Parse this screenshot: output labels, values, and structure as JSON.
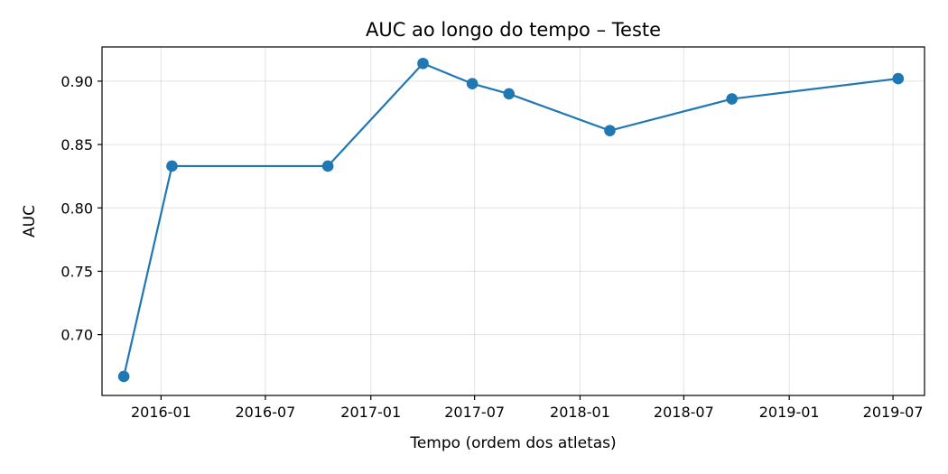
{
  "chart_data": {
    "type": "line",
    "title": "AUC ao longo do tempo – Teste",
    "xlabel": "Tempo (ordem dos atletas)",
    "ylabel": "AUC",
    "x_axis_type": "date",
    "xlim": [
      "2015-09-20",
      "2019-08-25"
    ],
    "ylim": [
      0.652,
      0.927
    ],
    "x_ticks": [
      "2016-01-01",
      "2016-07-01",
      "2017-01-01",
      "2017-07-01",
      "2018-01-01",
      "2018-07-01",
      "2019-01-01",
      "2019-07-01"
    ],
    "x_tick_labels": [
      "2016-01",
      "2016-07",
      "2017-01",
      "2017-07",
      "2018-01",
      "2018-07",
      "2019-01",
      "2019-07"
    ],
    "y_ticks": [
      0.7,
      0.75,
      0.8,
      0.85,
      0.9
    ],
    "y_tick_labels": [
      "0.70",
      "0.75",
      "0.80",
      "0.85",
      "0.90"
    ],
    "grid": true,
    "color": "#1f77b4",
    "series": [
      {
        "x": [
          "2015-10-28",
          "2016-01-20",
          "2016-10-18",
          "2017-04-02",
          "2017-06-27",
          "2017-08-30",
          "2018-02-22",
          "2018-09-23",
          "2019-07-10"
        ],
        "y": [
          0.667,
          0.833,
          0.833,
          0.914,
          0.898,
          0.89,
          0.861,
          0.886,
          0.902
        ]
      }
    ]
  }
}
